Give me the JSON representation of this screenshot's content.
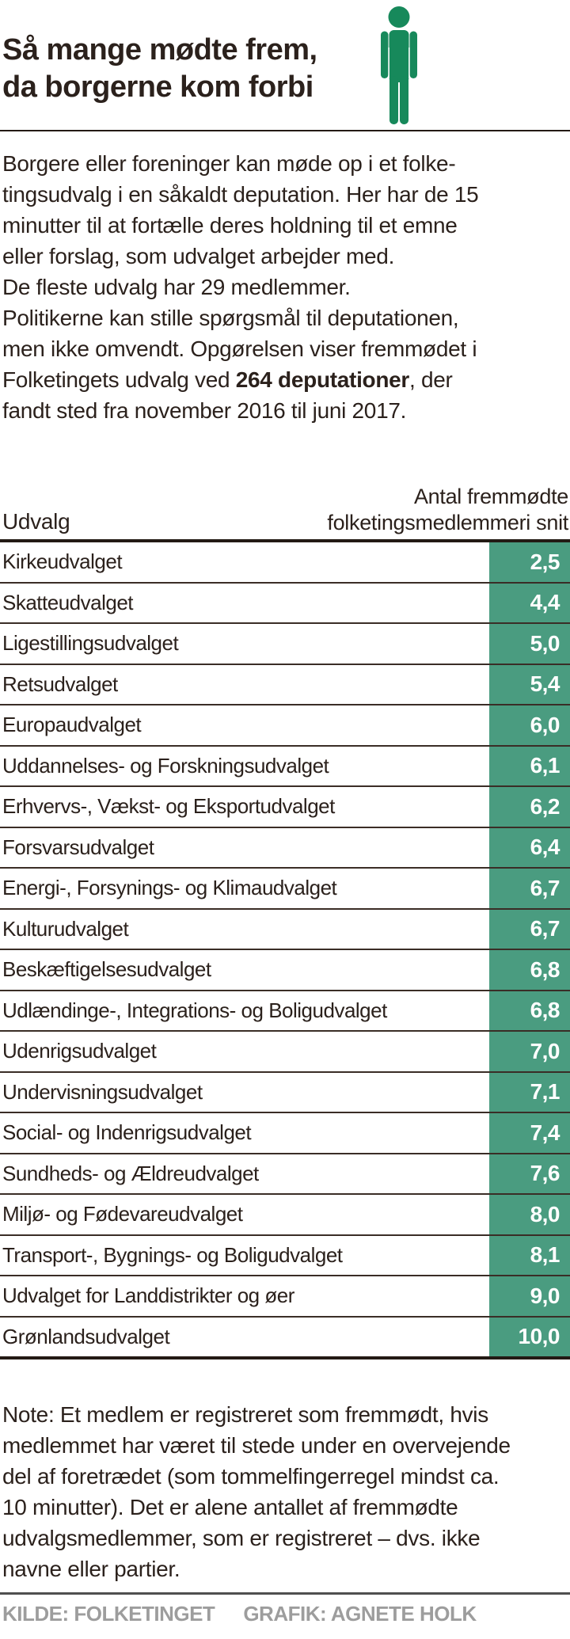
{
  "header": {
    "title_line1": "Så mange mødte frem,",
    "title_line2": "da borgerne kom forbi",
    "icon": "person-icon"
  },
  "colors": {
    "icon_green": "#17895b",
    "cell_green": "#4a9c80",
    "ink": "#2b211c",
    "footer_gray": "#9d9d9d"
  },
  "intro": {
    "bold_phrase": "264 deputationer",
    "lines": [
      "Borgere eller foreninger kan møde op i et folke-",
      "tingsudvalg i en såkaldt deputation. Her har de 15",
      "minutter til at fortælle deres holdning til et emne",
      "eller forslag, som udvalget arbejder med.",
      "De fleste udvalg har 29 medlemmer.",
      "Politikerne kan stille spørgsmål til deputationen,",
      "men ikke omvendt. Opgørelsen viser fremmødet i",
      "Folketingets udvalg ved 264 deputationer, der",
      "fandt sted fra november 2016 til juni 2017."
    ]
  },
  "table": {
    "col_committee": "Udvalg",
    "col_value_line1": "Antal fremmødte",
    "col_value_line2": "folketingsmedlemmeri snit",
    "rows": [
      {
        "name": "Kirkeudvalget",
        "value": "2,5"
      },
      {
        "name": "Skatteudvalget",
        "value": "4,4"
      },
      {
        "name": "Ligestillingsudvalget",
        "value": "5,0"
      },
      {
        "name": "Retsudvalget",
        "value": "5,4"
      },
      {
        "name": "Europaudvalget",
        "value": "6,0"
      },
      {
        "name": "Uddannelses- og Forskningsudvalget",
        "value": "6,1"
      },
      {
        "name": "Erhvervs-, Vækst- og Eksportudvalget",
        "value": "6,2"
      },
      {
        "name": "Forsvarsudvalget",
        "value": "6,4"
      },
      {
        "name": "Energi-, Forsynings- og Klimaudvalget",
        "value": "6,7"
      },
      {
        "name": "Kulturudvalget",
        "value": "6,7"
      },
      {
        "name": "Beskæftigelsesudvalget",
        "value": "6,8"
      },
      {
        "name": "Udlændinge-, Integrations- og Boligudvalget",
        "value": "6,8"
      },
      {
        "name": "Udenrigsudvalget",
        "value": "7,0"
      },
      {
        "name": "Undervisningsudvalget",
        "value": "7,1"
      },
      {
        "name": "Social- og Indenrigsudvalget",
        "value": "7,4"
      },
      {
        "name": "Sundheds- og Ældreudvalget",
        "value": "7,6"
      },
      {
        "name": "Miljø- og Fødevareudvalget",
        "value": "8,0"
      },
      {
        "name": "Transport-, Bygnings- og Boligudvalget",
        "value": "8,1"
      },
      {
        "name": "Udvalget for Landdistrikter og øer",
        "value": "9,0"
      },
      {
        "name": "Grønlandsudvalget",
        "value": "10,0"
      }
    ]
  },
  "note": {
    "lines": [
      "Note: Et medlem er registreret som fremmødt, hvis",
      "medlemmet har været til stede under en overvejende",
      "del af foretrædet (som tommelfingerregel mindst ca.",
      "10 minutter). Det er alene antallet af fremmødte",
      "udvalgsmedlemmer, som er registreret – dvs. ikke",
      "navne eller partier."
    ]
  },
  "footer": {
    "source": "KILDE: FOLKETINGET",
    "credit": "GRAFIK: AGNETE HOLK"
  },
  "chart_data": {
    "type": "table",
    "title": "Så mange mødte frem, da borgerne kom forbi",
    "columns": [
      "Udvalg",
      "Antal fremmødte folketingsmedlemmer i snit"
    ],
    "categories": [
      "Kirkeudvalget",
      "Skatteudvalget",
      "Ligestillingsudvalget",
      "Retsudvalget",
      "Europaudvalget",
      "Uddannelses- og Forskningsudvalget",
      "Erhvervs-, Vækst- og Eksportudvalget",
      "Forsvarsudvalget",
      "Energi-, Forsynings- og Klimaudvalget",
      "Kulturudvalget",
      "Beskæftigelsesudvalget",
      "Udlændinge-, Integrations- og Boligudvalget",
      "Udenrigsudvalget",
      "Undervisningsudvalget",
      "Social- og Indenrigsudvalget",
      "Sundheds- og Ældreudvalget",
      "Miljø- og Fødevareudvalget",
      "Transport-, Bygnings- og Boligudvalget",
      "Udvalget for Landdistrikter og øer",
      "Grønlandsudvalget"
    ],
    "values": [
      2.5,
      4.4,
      5.0,
      5.4,
      6.0,
      6.1,
      6.2,
      6.4,
      6.7,
      6.7,
      6.8,
      6.8,
      7.0,
      7.1,
      7.4,
      7.6,
      8.0,
      8.1,
      9.0,
      10.0
    ],
    "deputationer_total": 264,
    "period": "november 2016 til juni 2017"
  }
}
